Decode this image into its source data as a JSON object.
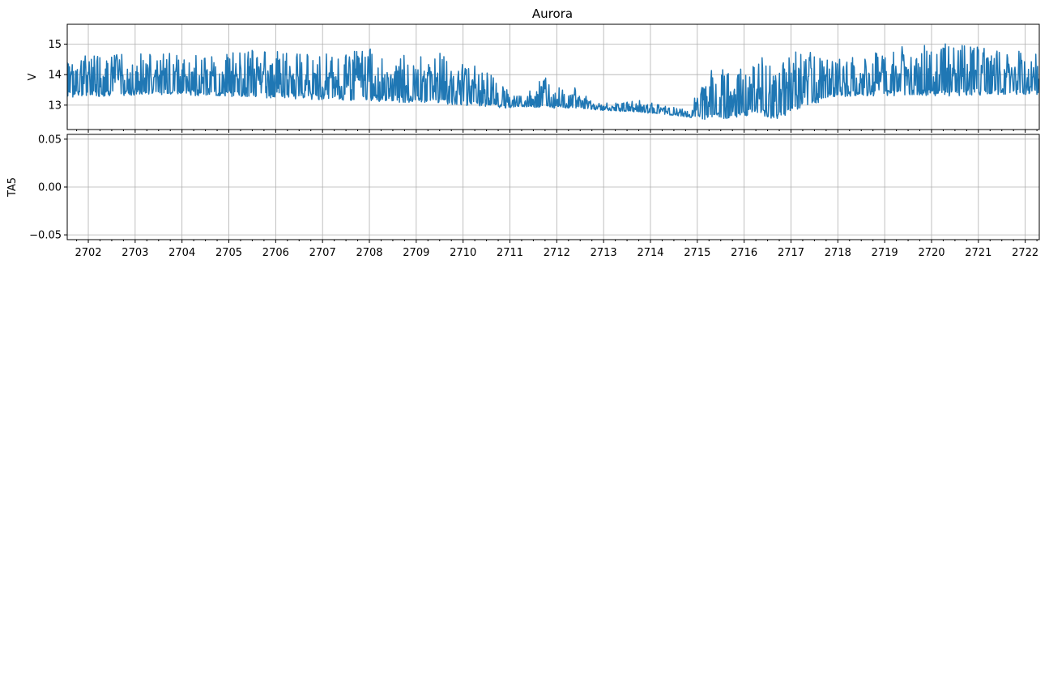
{
  "chart_data": [
    {
      "type": "line",
      "title": "Aurora",
      "xlabel": "",
      "ylabel": "V",
      "xlim": [
        2701.55,
        2722.3
      ],
      "ylim": [
        12.2,
        15.65
      ],
      "xticks": [
        2702,
        2703,
        2704,
        2705,
        2706,
        2707,
        2708,
        2709,
        2710,
        2711,
        2712,
        2713,
        2714,
        2715,
        2716,
        2717,
        2718,
        2719,
        2720,
        2721,
        2722
      ],
      "yticks": [
        13,
        14,
        15
      ],
      "ytick_labels": [
        "13",
        "14",
        "15"
      ],
      "grid": true,
      "series": [
        {
          "color": "#1f77b4",
          "style": "dense-oscillation",
          "x": [
            2701.6,
            2702.5,
            2703.5,
            2704.5,
            2705.5,
            2706.5,
            2707.5,
            2708.5,
            2709.5,
            2710.0,
            2710.5,
            2710.9,
            2711.3,
            2711.8,
            2712.3,
            2712.8,
            2713.3,
            2713.8,
            2714.3,
            2714.8,
            2715.3,
            2715.8,
            2716.3,
            2716.7,
            2717.3,
            2717.9,
            2718.5,
            2719.5,
            2720.5,
            2721.5,
            2722.3
          ],
          "y_low": [
            13.25,
            13.3,
            13.35,
            13.3,
            13.25,
            13.2,
            13.15,
            13.1,
            13.05,
            13.0,
            12.95,
            12.9,
            12.95,
            12.9,
            12.9,
            12.85,
            12.8,
            12.75,
            12.7,
            12.6,
            12.5,
            12.6,
            12.7,
            12.5,
            12.9,
            13.25,
            13.3,
            13.3,
            13.3,
            13.35,
            13.35
          ],
          "y_high": [
            15.0,
            14.8,
            14.9,
            14.9,
            15.0,
            14.9,
            15.0,
            15.1,
            14.9,
            14.6,
            14.3,
            13.6,
            13.3,
            14.2,
            13.8,
            13.1,
            13.1,
            13.2,
            13.0,
            12.9,
            14.4,
            14.3,
            14.7,
            15.0,
            15.0,
            14.8,
            15.0,
            15.2,
            15.2,
            15.1,
            14.8
          ]
        }
      ]
    },
    {
      "type": "line",
      "title": "",
      "xlabel": "",
      "ylabel": "TA5",
      "xlim": [
        2701.55,
        2722.3
      ],
      "ylim": [
        -0.055,
        0.055
      ],
      "xticks": [
        2702,
        2703,
        2704,
        2705,
        2706,
        2707,
        2708,
        2709,
        2710,
        2711,
        2712,
        2713,
        2714,
        2715,
        2716,
        2717,
        2718,
        2719,
        2720,
        2721,
        2722
      ],
      "xtick_labels": [
        "2702",
        "2703",
        "2704",
        "2705",
        "2706",
        "2707",
        "2708",
        "2709",
        "2710",
        "2711",
        "2712",
        "2713",
        "2714",
        "2715",
        "2716",
        "2717",
        "2718",
        "2719",
        "2720",
        "2721",
        "2722"
      ],
      "yticks": [
        0.05,
        0.0,
        -0.05
      ],
      "ytick_labels": [
        "0.05",
        "0.00",
        "−0.05"
      ],
      "grid": true,
      "series": []
    }
  ]
}
